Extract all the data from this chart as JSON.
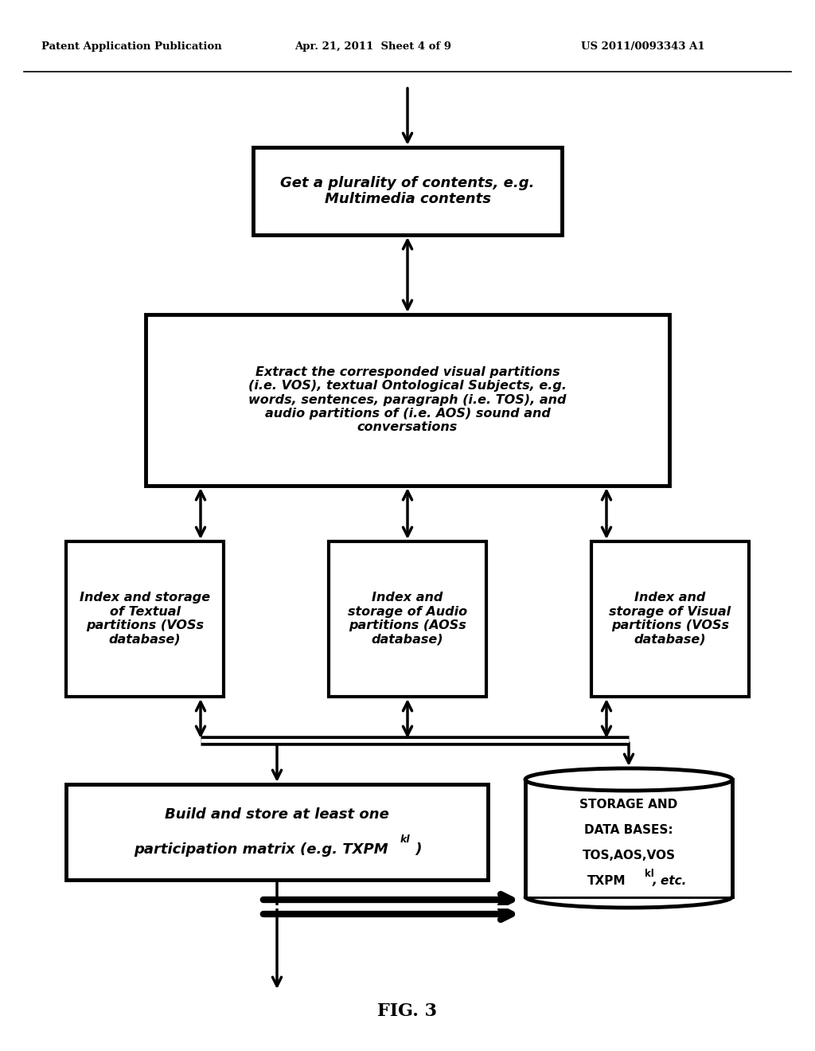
{
  "header_left": "Patent Application Publication",
  "header_mid": "Apr. 21, 2011  Sheet 4 of 9",
  "header_right": "US 2011/0093343 A1",
  "box1_text": "Get a plurality of contents, e.g.\nMultimedia contents",
  "box2_text": "Extract the corresponded visual partitions\n(i.e. VOS), textual Ontological Subjects, e.g.\nwords, sentences, paragraph (i.e. TOS), and\naudio partitions of (i.e. AOS) sound and\nconversations",
  "box3a_text": "Index and storage\nof Textual\npartitions (VOSs\ndatabase)",
  "box3b_text": "Index and\nstorage of Audio\npartitions (AOSs\ndatabase)",
  "box3c_text": "Index and\nstorage of Visual\npartitions (VOSs\ndatabase)",
  "fig_label": "FIG. 3",
  "bg_color": "#ffffff",
  "text_color": "#000000"
}
